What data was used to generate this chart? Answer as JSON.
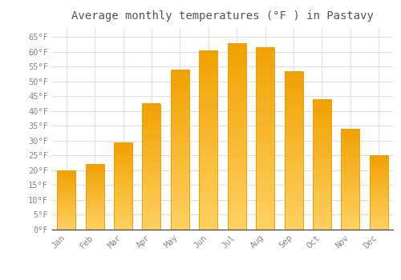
{
  "title": "Average monthly temperatures (°F ) in Pastavy",
  "months": [
    "Jan",
    "Feb",
    "Mar",
    "Apr",
    "May",
    "Jun",
    "Jul",
    "Aug",
    "Sep",
    "Oct",
    "Nov",
    "Dec"
  ],
  "values": [
    20,
    22,
    29.5,
    42.5,
    54,
    60.5,
    63,
    61.5,
    53.5,
    44,
    34,
    25
  ],
  "bar_color_top": "#F5A800",
  "bar_color_bottom": "#FFD060",
  "bar_edge_color": "#F0A000",
  "background_color": "#FFFFFF",
  "plot_bg_color": "#FFFFFF",
  "grid_color": "#E0E0E0",
  "text_color": "#888888",
  "title_color": "#555555",
  "ylim": [
    0,
    68
  ],
  "yticks": [
    0,
    5,
    10,
    15,
    20,
    25,
    30,
    35,
    40,
    45,
    50,
    55,
    60,
    65
  ],
  "title_fontsize": 10,
  "tick_fontsize": 7.5,
  "bar_width": 0.65
}
